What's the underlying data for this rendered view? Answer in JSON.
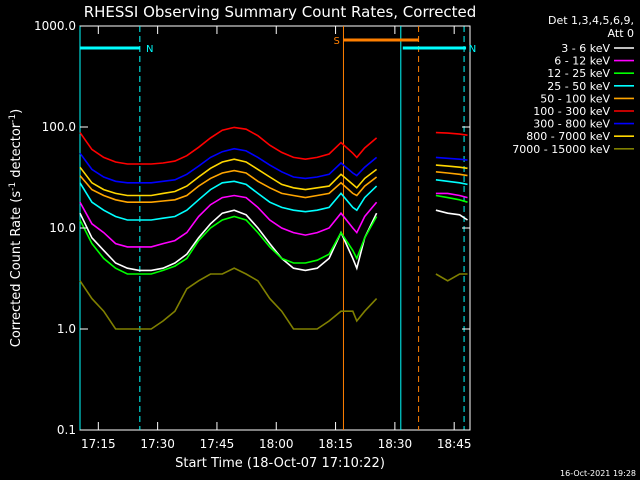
{
  "chart_data": {
    "type": "line",
    "title": "RHESSI Observing Summary Count Rates, Corrected",
    "xlabel": "Start Time (18-Oct-07 17:10:22)",
    "ylabel": "Corrected Count Rate (s",
    "ylabel_exp": "-1",
    "ylabel_tail": " detector",
    "ylabel_exp2": "-1",
    "ylabel_close": ")",
    "y_scale": "log",
    "ylim": [
      0.1,
      1000.0
    ],
    "xlim": [
      "17:10:22",
      "18:49:00"
    ],
    "x_ticks": [
      "17:15",
      "17:30",
      "17:45",
      "18:00",
      "18:15",
      "18:30",
      "18:45"
    ],
    "y_ticks": [
      "0.1",
      "1.0",
      "10.0",
      "100.0",
      "1000.0"
    ],
    "legend_header": [
      "Det 1,3,4,5,6,9,",
      "Att 0"
    ],
    "legend_position": "right",
    "footer_date": "16-Oct-2021 19:28",
    "flags": [
      {
        "label": "N",
        "color": "#00ffff",
        "start": "17:10:22",
        "end": "17:25:30"
      },
      {
        "label": "N",
        "color": "#00ffff",
        "start": "18:32:00",
        "end": "18:48:00"
      },
      {
        "label": "S",
        "color": "#ff7f00",
        "start": "18:17:00",
        "end": "18:36:00"
      }
    ],
    "markers": [
      {
        "time": "17:10:22",
        "color": "#00ffff",
        "style": "solid"
      },
      {
        "time": "17:25:30",
        "color": "#00ffff",
        "style": "dashed"
      },
      {
        "time": "18:17:00",
        "color": "#ff7f00",
        "style": "solid"
      },
      {
        "time": "18:31:30",
        "color": "#00ffff",
        "style": "solid"
      },
      {
        "time": "18:36:00",
        "color": "#ff7f00",
        "style": "dashed"
      },
      {
        "time": "18:47:30",
        "color": "#00ffff",
        "style": "dashed"
      }
    ],
    "data_gap": [
      "18:26:00",
      "18:38:30"
    ],
    "x_minutes_from_start": [
      0,
      3,
      6,
      9,
      12,
      15,
      18,
      21,
      24,
      27,
      30,
      33,
      36,
      39,
      42,
      45,
      48,
      51,
      54,
      57,
      60,
      63,
      66,
      69,
      70,
      72,
      75,
      78,
      88,
      90,
      93,
      96,
      98
    ],
    "series": [
      {
        "name": "3 - 6 keV",
        "color": "#000000",
        "values": [
          14,
          8,
          6,
          4.5,
          4,
          3.8,
          3.8,
          4,
          4.5,
          5.5,
          8,
          11,
          14,
          15,
          13.5,
          10,
          7,
          5,
          4,
          3.8,
          4,
          5,
          9,
          5,
          4,
          8,
          14,
          null,
          null,
          15,
          14,
          13.5,
          12
        ]
      },
      {
        "name": "6 - 12 keV",
        "color": "#ff00ff",
        "values": [
          18,
          11,
          9,
          7,
          6.5,
          6.5,
          6.5,
          7,
          7.5,
          9,
          13,
          17,
          20,
          21,
          20,
          16,
          12,
          10,
          9,
          8.5,
          9,
          10,
          14,
          10,
          9,
          13,
          18,
          null,
          null,
          22,
          22,
          21,
          20
        ]
      },
      {
        "name": "12 - 25 keV",
        "color": "#00ff00",
        "values": [
          12,
          7,
          5,
          4,
          3.5,
          3.5,
          3.5,
          3.8,
          4.2,
          5,
          7.5,
          10,
          12,
          13,
          12,
          9,
          6.5,
          5,
          4.5,
          4.5,
          4.8,
          5.5,
          9,
          6,
          5,
          8,
          13,
          null,
          null,
          21,
          20,
          19,
          18
        ]
      },
      {
        "name": "25 - 50 keV",
        "color": "#00ffff",
        "values": [
          28,
          18,
          15,
          13,
          12,
          12,
          12,
          12.5,
          13,
          15,
          19,
          24,
          28,
          29,
          27,
          22,
          18,
          16,
          15,
          14.5,
          15,
          16,
          22,
          16,
          15,
          20,
          26,
          null,
          null,
          30,
          29,
          28,
          27
        ]
      },
      {
        "name": "50 - 100 keV",
        "color": "#ffa500",
        "values": [
          33,
          24,
          21,
          19,
          18,
          18,
          18,
          18.5,
          19,
          21,
          26,
          31,
          35,
          37,
          35,
          29,
          25,
          22,
          21,
          20,
          21,
          22,
          28,
          22,
          21,
          26,
          32,
          null,
          null,
          36,
          35,
          34,
          33
        ]
      },
      {
        "name": "100 - 300 keV",
        "color": "#ff0000",
        "values": [
          88,
          60,
          50,
          45,
          43,
          43,
          43,
          44,
          46,
          52,
          63,
          78,
          93,
          99,
          95,
          82,
          66,
          56,
          50,
          48,
          50,
          54,
          70,
          55,
          50,
          62,
          78,
          null,
          null,
          88,
          87,
          85,
          83
        ]
      },
      {
        "name": "300 - 800 keV",
        "color": "#0000ff",
        "values": [
          55,
          38,
          32,
          29,
          28,
          28,
          28,
          29,
          30,
          34,
          41,
          50,
          57,
          61,
          58,
          50,
          42,
          36,
          32,
          31,
          32,
          34,
          44,
          35,
          33,
          40,
          50,
          null,
          null,
          50,
          49,
          48,
          47
        ]
      },
      {
        "name": "800 - 7000 keV",
        "color": "#ffd700",
        "values": [
          40,
          28,
          24,
          22,
          21,
          21,
          21,
          22,
          23,
          26,
          32,
          39,
          45,
          48,
          45,
          38,
          32,
          27,
          25,
          24,
          25,
          26,
          34,
          27,
          25,
          31,
          38,
          null,
          null,
          42,
          41,
          40,
          39
        ]
      },
      {
        "name": "7000 - 15000 keV",
        "color": "#808000",
        "values": [
          3,
          2,
          1.5,
          1,
          1,
          1,
          1,
          1.2,
          1.5,
          2.5,
          3,
          3.5,
          3.5,
          4,
          3.5,
          3,
          2,
          1.5,
          1,
          1,
          1,
          1.2,
          1.5,
          1.5,
          1.2,
          1.5,
          2,
          null,
          null,
          3.5,
          3,
          3.5,
          3.5
        ]
      }
    ]
  }
}
